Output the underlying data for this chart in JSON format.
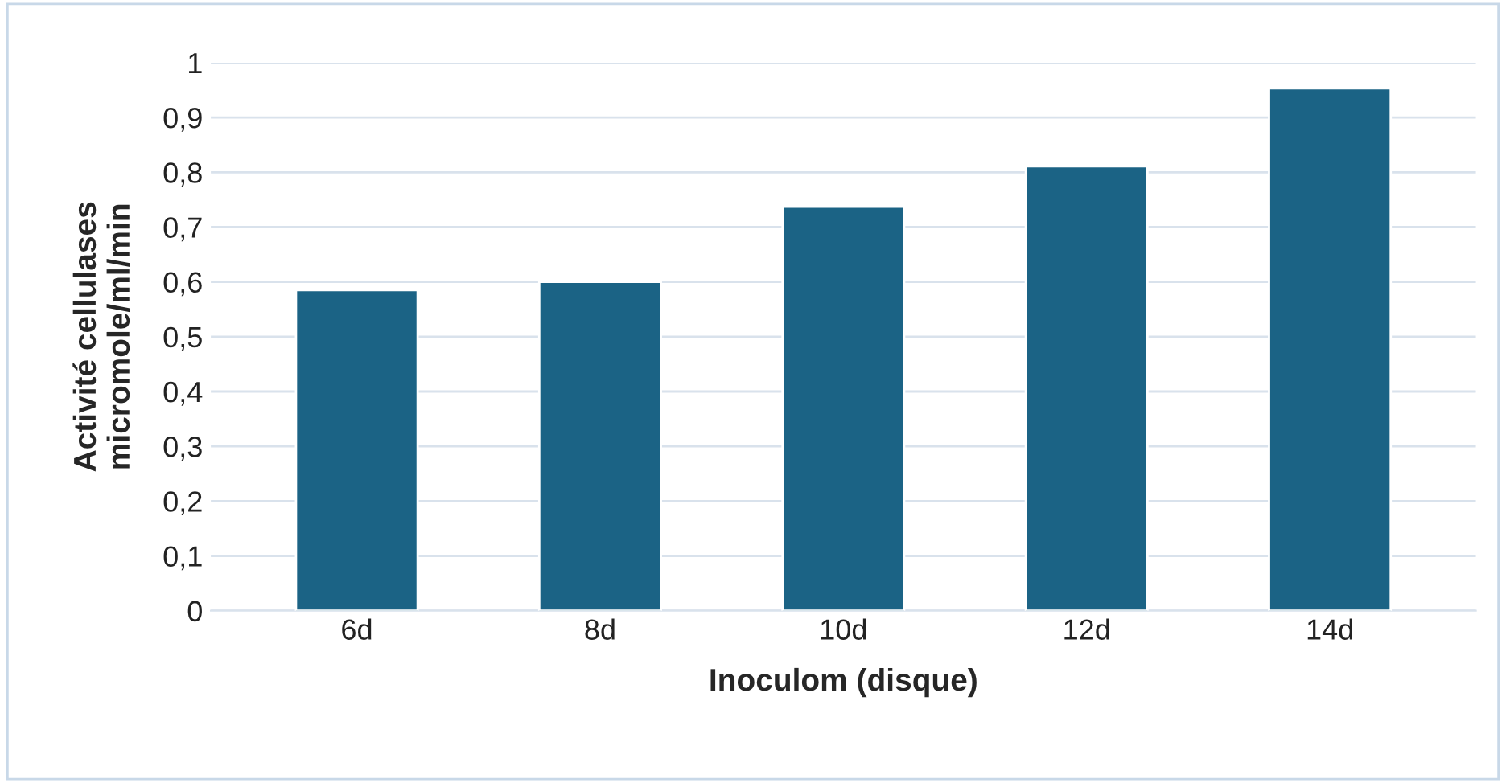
{
  "chart_data": {
    "type": "bar",
    "xlabel": "Inoculom (disque)",
    "ylabel": "Activité cellulases\nmicromole/ml/min",
    "categories": [
      "6d",
      "8d",
      "10d",
      "12d",
      "14d"
    ],
    "values": [
      0.585,
      0.6,
      0.737,
      0.811,
      0.953
    ],
    "color": "#1b6385",
    "ylim": [
      0,
      1
    ],
    "yticks": [
      0,
      {
        "value": 0.1,
        "label": "0,1"
      },
      {
        "value": 0.2,
        "label": "0,2"
      },
      {
        "value": 0.3,
        "label": "0,3"
      },
      {
        "value": 0.4,
        "label": "0,4"
      },
      {
        "value": 0.5,
        "label": "0,5"
      },
      {
        "value": 0.6,
        "label": "0,6"
      },
      {
        "value": 0.7,
        "label": "0,7"
      },
      {
        "value": 0.8,
        "label": "0,8"
      },
      {
        "value": 0.9,
        "label": "0,9"
      },
      1
    ],
    "grid": "y",
    "legend": false
  }
}
